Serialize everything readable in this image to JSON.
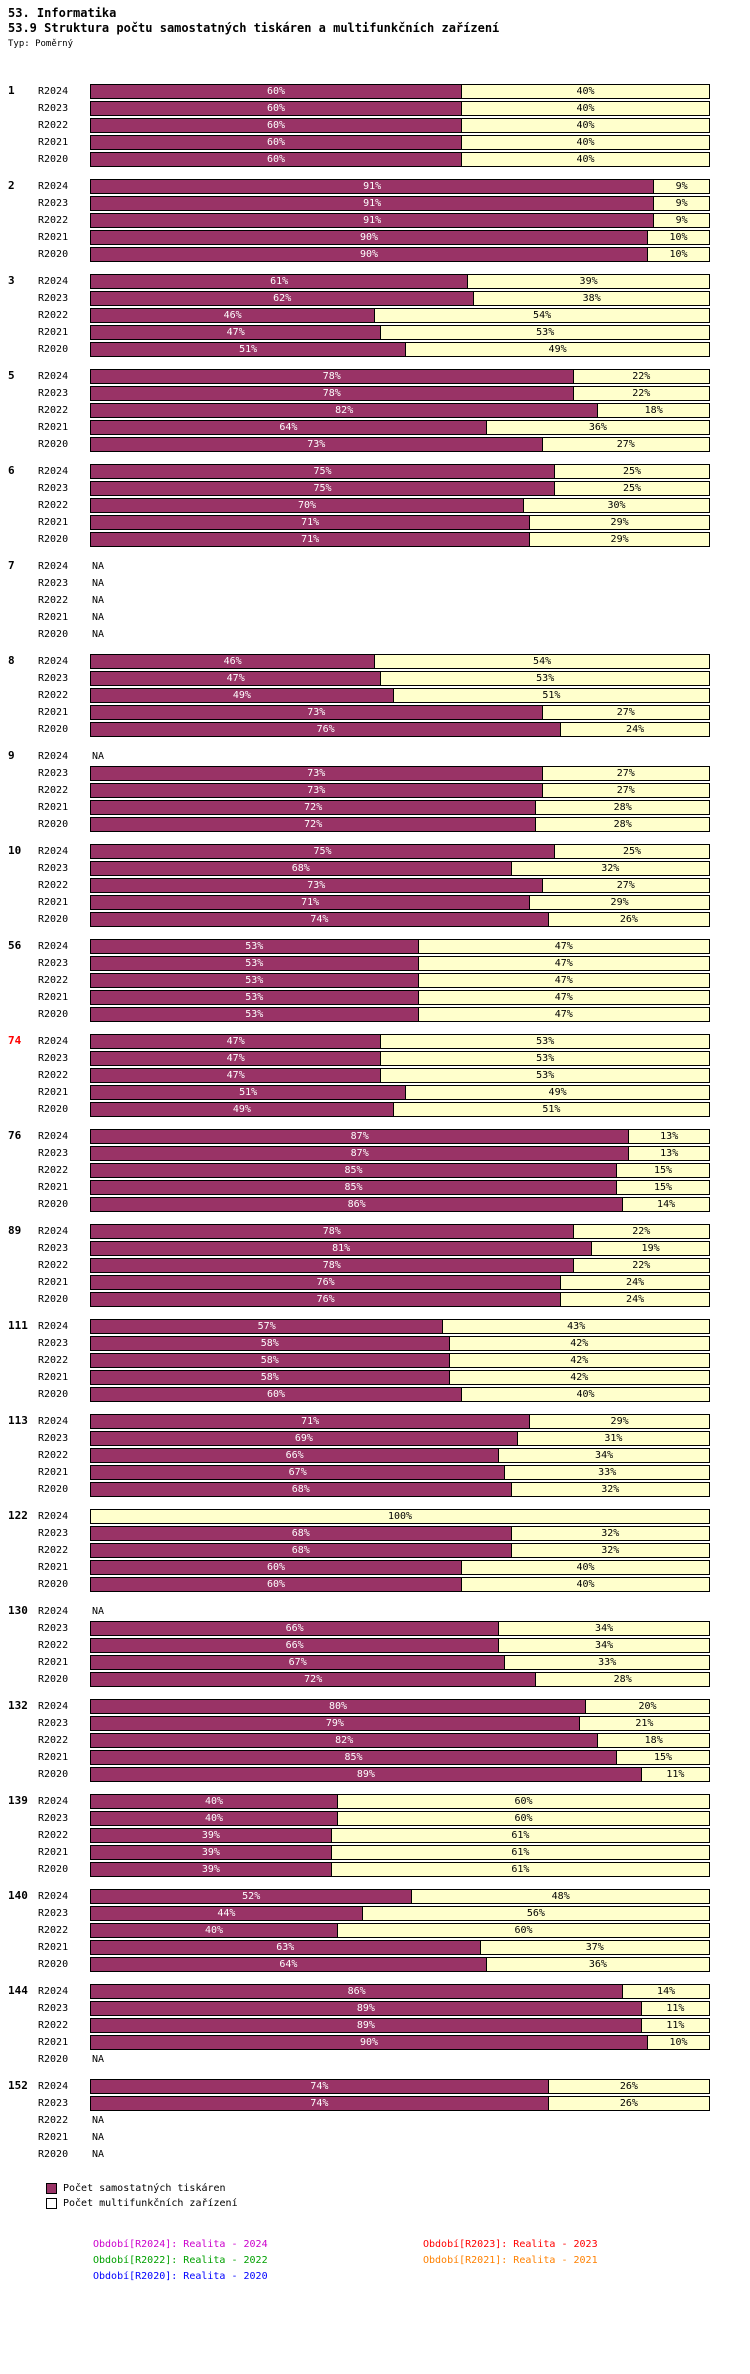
{
  "title": "53. Informatika",
  "subtitle": "53.9 Struktura počtu samostatných tiskáren a multifunkčních zařízení",
  "type_label": "Typ: Poměrný",
  "colors": {
    "printers": "#993366",
    "multifunction": "#FFFFCC",
    "bar_border": "#000000",
    "highlight_label": "#FF0000"
  },
  "series_legend": [
    {
      "label": "Počet samostatných tiskáren",
      "swatch": "#993366"
    },
    {
      "label": "Počet multifunkčních zařízení",
      "swatch": "#FFFFFF"
    }
  ],
  "period_legend": [
    {
      "label": "Období[R2024]: Realita - 2024",
      "color": "#CC00CC"
    },
    {
      "label": "Období[R2023]: Realita - 2023",
      "color": "#FF0000"
    },
    {
      "label": "Období[R2022]: Realita - 2022",
      "color": "#00A000"
    },
    {
      "label": "Období[R2021]: Realita - 2021",
      "color": "#FF8000"
    },
    {
      "label": "Období[R2020]: Realita - 2020",
      "color": "#0000FF"
    }
  ],
  "chart_data": {
    "type": "bar",
    "stacked": true,
    "orientation": "horizontal",
    "value_unit": "%",
    "xlim": [
      0,
      100
    ],
    "na_text": "NA",
    "series": [
      "Počet samostatných tiskáren",
      "Počet multifunkčních zařízení"
    ],
    "period_labels": [
      "R2024",
      "R2023",
      "R2022",
      "R2021",
      "R2020"
    ],
    "groups": [
      {
        "id": "1",
        "highlight": false,
        "values": [
          [
            60,
            40
          ],
          [
            60,
            40
          ],
          [
            60,
            40
          ],
          [
            60,
            40
          ],
          [
            60,
            40
          ]
        ]
      },
      {
        "id": "2",
        "highlight": false,
        "values": [
          [
            91,
            9
          ],
          [
            91,
            9
          ],
          [
            91,
            9
          ],
          [
            90,
            10
          ],
          [
            90,
            10
          ]
        ]
      },
      {
        "id": "3",
        "highlight": false,
        "values": [
          [
            61,
            39
          ],
          [
            62,
            38
          ],
          [
            46,
            54
          ],
          [
            47,
            53
          ],
          [
            51,
            49
          ]
        ]
      },
      {
        "id": "5",
        "highlight": false,
        "values": [
          [
            78,
            22
          ],
          [
            78,
            22
          ],
          [
            82,
            18
          ],
          [
            64,
            36
          ],
          [
            73,
            27
          ]
        ]
      },
      {
        "id": "6",
        "highlight": false,
        "values": [
          [
            75,
            25
          ],
          [
            75,
            25
          ],
          [
            70,
            30
          ],
          [
            71,
            29
          ],
          [
            71,
            29
          ]
        ]
      },
      {
        "id": "7",
        "highlight": false,
        "values": [
          null,
          null,
          null,
          null,
          null
        ]
      },
      {
        "id": "8",
        "highlight": false,
        "values": [
          [
            46,
            54
          ],
          [
            47,
            53
          ],
          [
            49,
            51
          ],
          [
            73,
            27
          ],
          [
            76,
            24
          ]
        ]
      },
      {
        "id": "9",
        "highlight": false,
        "values": [
          null,
          [
            73,
            27
          ],
          [
            73,
            27
          ],
          [
            72,
            28
          ],
          [
            72,
            28
          ]
        ]
      },
      {
        "id": "10",
        "highlight": false,
        "values": [
          [
            75,
            25
          ],
          [
            68,
            32
          ],
          [
            73,
            27
          ],
          [
            71,
            29
          ],
          [
            74,
            26
          ]
        ]
      },
      {
        "id": "56",
        "highlight": false,
        "values": [
          [
            53,
            47
          ],
          [
            53,
            47
          ],
          [
            53,
            47
          ],
          [
            53,
            47
          ],
          [
            53,
            47
          ]
        ]
      },
      {
        "id": "74",
        "highlight": true,
        "values": [
          [
            47,
            53
          ],
          [
            47,
            53
          ],
          [
            47,
            53
          ],
          [
            51,
            49
          ],
          [
            49,
            51
          ]
        ]
      },
      {
        "id": "76",
        "highlight": false,
        "values": [
          [
            87,
            13
          ],
          [
            87,
            13
          ],
          [
            85,
            15
          ],
          [
            85,
            15
          ],
          [
            86,
            14
          ]
        ]
      },
      {
        "id": "89",
        "highlight": false,
        "values": [
          [
            78,
            22
          ],
          [
            81,
            19
          ],
          [
            78,
            22
          ],
          [
            76,
            24
          ],
          [
            76,
            24
          ]
        ]
      },
      {
        "id": "111",
        "highlight": false,
        "values": [
          [
            57,
            43
          ],
          [
            58,
            42
          ],
          [
            58,
            42
          ],
          [
            58,
            42
          ],
          [
            60,
            40
          ]
        ]
      },
      {
        "id": "113",
        "highlight": false,
        "values": [
          [
            71,
            29
          ],
          [
            69,
            31
          ],
          [
            66,
            34
          ],
          [
            67,
            33
          ],
          [
            68,
            32
          ]
        ]
      },
      {
        "id": "122",
        "highlight": false,
        "values": [
          [
            0,
            100
          ],
          [
            68,
            32
          ],
          [
            68,
            32
          ],
          [
            60,
            40
          ],
          [
            60,
            40
          ]
        ]
      },
      {
        "id": "130",
        "highlight": false,
        "values": [
          null,
          [
            66,
            34
          ],
          [
            66,
            34
          ],
          [
            67,
            33
          ],
          [
            72,
            28
          ]
        ]
      },
      {
        "id": "132",
        "highlight": false,
        "values": [
          [
            80,
            20
          ],
          [
            79,
            21
          ],
          [
            82,
            18
          ],
          [
            85,
            15
          ],
          [
            89,
            11
          ]
        ]
      },
      {
        "id": "139",
        "highlight": false,
        "values": [
          [
            40,
            60
          ],
          [
            40,
            60
          ],
          [
            39,
            61
          ],
          [
            39,
            61
          ],
          [
            39,
            61
          ]
        ]
      },
      {
        "id": "140",
        "highlight": false,
        "values": [
          [
            52,
            48
          ],
          [
            44,
            56
          ],
          [
            40,
            60
          ],
          [
            63,
            37
          ],
          [
            64,
            36
          ]
        ]
      },
      {
        "id": "144",
        "highlight": false,
        "values": [
          [
            86,
            14
          ],
          [
            89,
            11
          ],
          [
            89,
            11
          ],
          [
            90,
            10
          ],
          null
        ]
      },
      {
        "id": "152",
        "highlight": false,
        "values": [
          [
            74,
            26
          ],
          [
            74,
            26
          ],
          null,
          null,
          null
        ]
      }
    ]
  }
}
